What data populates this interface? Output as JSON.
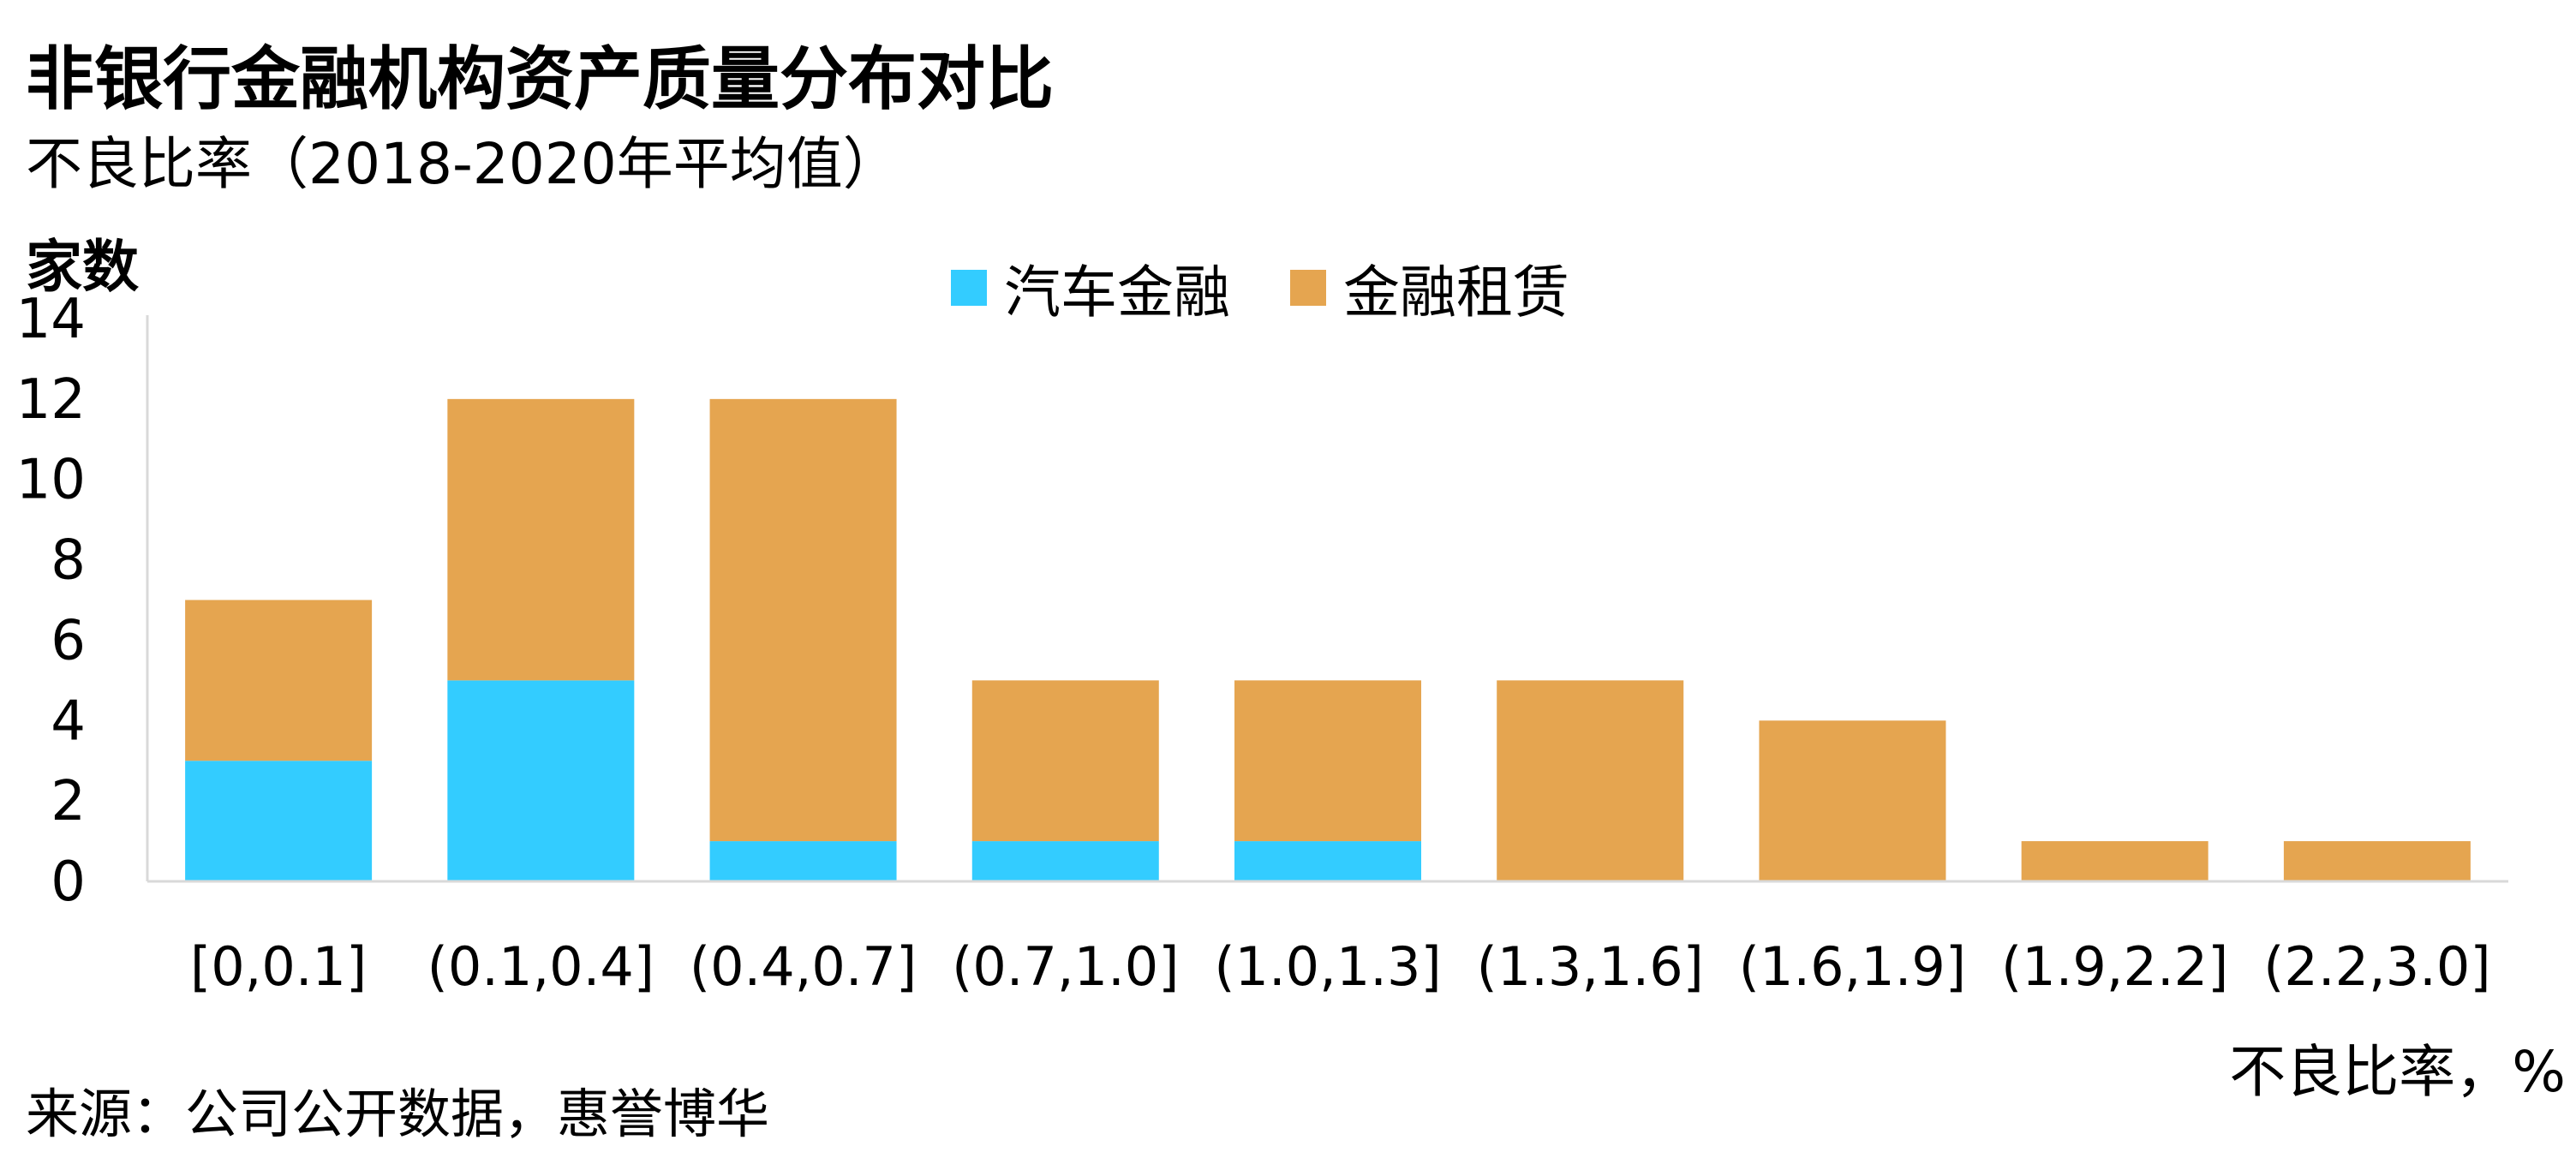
{
  "title": "非银行金融机构资产质量分布对比",
  "subtitle": "不良比率（2018-2020年平均值）",
  "source": "来源：公司公开数据，惠誉博华",
  "chart_data": {
    "type": "bar",
    "stacked": true,
    "title": "非银行金融机构资产质量分布对比",
    "subtitle": "不良比率（2018-2020年平均值）",
    "ylabel": "家数",
    "xlabel": "不良比率，%",
    "ylim": [
      0,
      14
    ],
    "yticks": [
      0,
      2,
      4,
      6,
      8,
      10,
      12,
      14
    ],
    "grid": false,
    "legend_position": "top-center",
    "categories": [
      "[0,0.1]",
      "(0.1,0.4]",
      "(0.4,0.7]",
      "(0.7,1.0]",
      "(1.0,1.3]",
      "(1.3,1.6]",
      "(1.6,1.9]",
      "(1.9,2.2]",
      "(2.2,3.0]"
    ],
    "series": [
      {
        "name": "汽车金融",
        "color": "#33ccff",
        "values": [
          3,
          5,
          1,
          1,
          1,
          0,
          0,
          0,
          0
        ]
      },
      {
        "name": "金融租赁",
        "color": "#e5a550",
        "values": [
          4,
          7,
          11,
          4,
          4,
          5,
          4,
          1,
          1
        ]
      }
    ]
  }
}
